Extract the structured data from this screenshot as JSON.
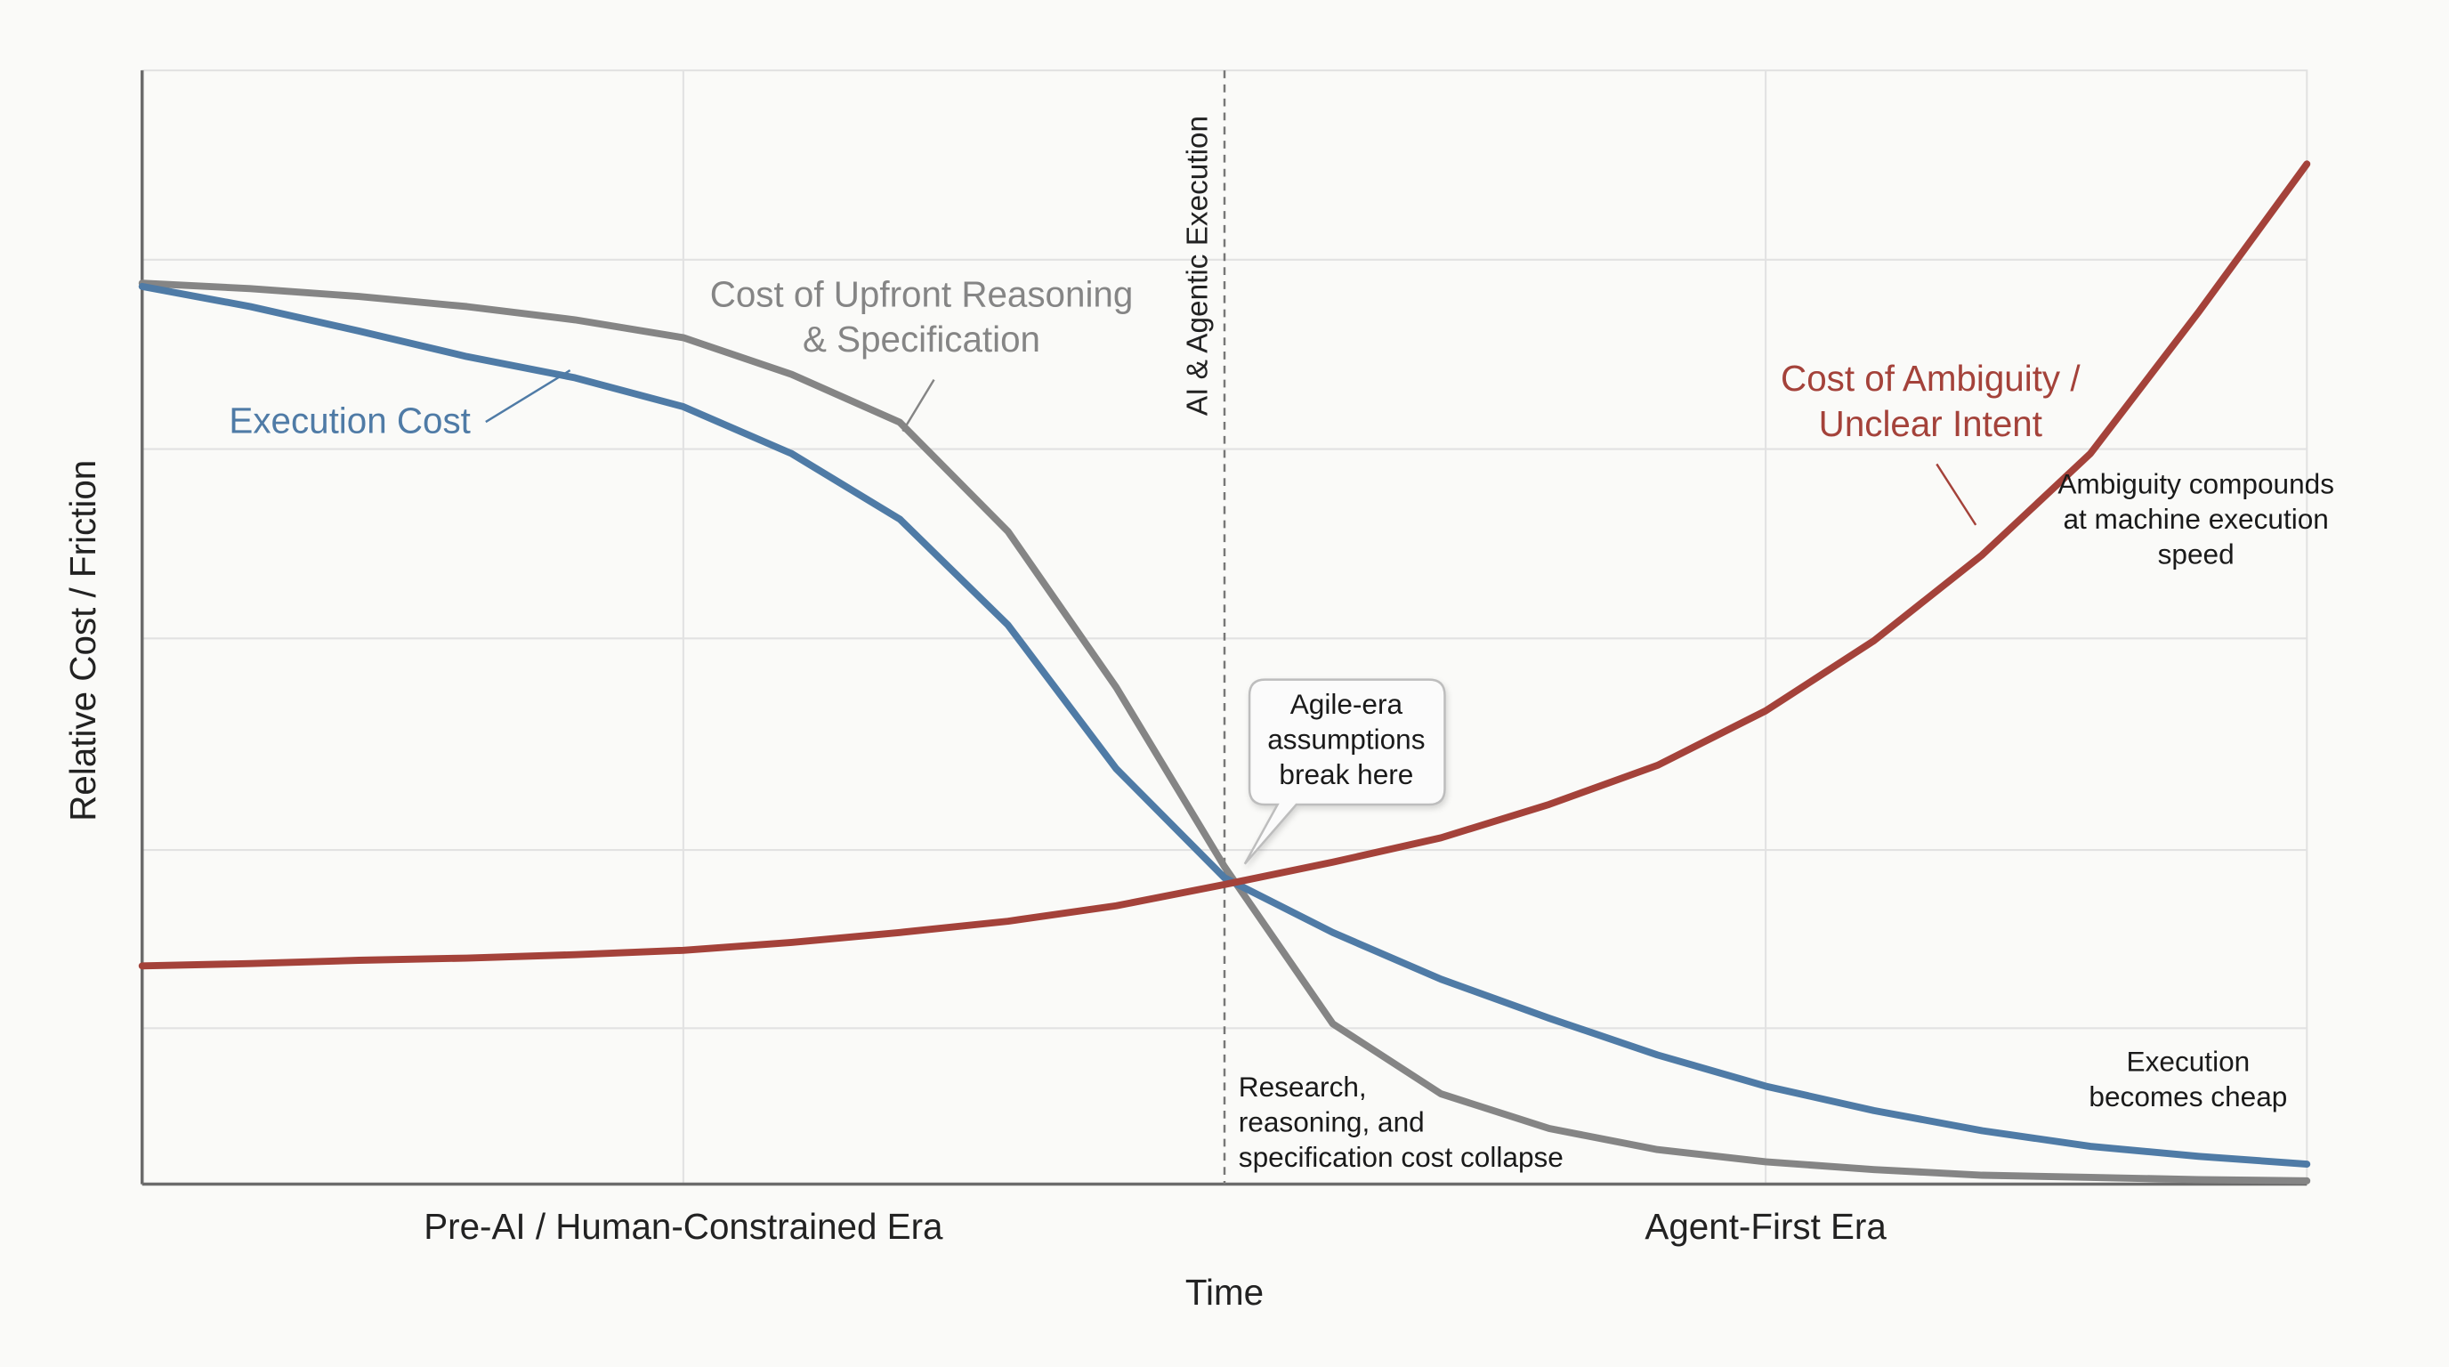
{
  "chart_data": {
    "type": "line",
    "x_label": "Time",
    "y_label": "Relative Cost / Friction",
    "x": [
      0,
      5,
      10,
      15,
      20,
      25,
      30,
      35,
      40,
      45,
      50,
      55,
      60,
      65,
      70,
      75,
      80,
      85,
      90,
      95,
      100
    ],
    "xlim": [
      0,
      100
    ],
    "ylim": [
      0,
      100
    ],
    "xticks": [
      {
        "value": 25,
        "label": "Pre-AI / Human-Constrained Era"
      },
      {
        "value": 75,
        "label": "Agent-First Era"
      }
    ],
    "yticks": [
      14,
      30,
      49,
      66,
      83
    ],
    "grid": true,
    "marker": {
      "x": 50,
      "label": "AI & Agentic Execution"
    },
    "series": [
      {
        "label": [
          "Execution Cost"
        ],
        "color": "#4f7ba6",
        "values": [
          80.6,
          78.8,
          76.6,
          74.3,
          72.4,
          69.8,
          65.6,
          59.7,
          50.2,
          37.3,
          27.5,
          22.6,
          18.4,
          14.9,
          11.6,
          8.8,
          6.6,
          4.8,
          3.4,
          2.5,
          1.8
        ]
      },
      {
        "label": [
          "Cost of Upfront Reasoning",
          "& Specification"
        ],
        "color": "#858585",
        "values": [
          80.9,
          80.4,
          79.7,
          78.8,
          77.6,
          76.0,
          72.7,
          68.4,
          58.6,
          44.6,
          28.5,
          14.4,
          8.1,
          5.0,
          3.1,
          2.0,
          1.3,
          0.8,
          0.6,
          0.4,
          0.3
        ]
      },
      {
        "label": [
          "Cost of Ambiguity /",
          "Unclear Intent"
        ],
        "color": "#a4423a",
        "values": [
          19.6,
          19.8,
          20.1,
          20.3,
          20.6,
          21.0,
          21.7,
          22.6,
          23.6,
          25.0,
          26.9,
          28.9,
          31.1,
          34.1,
          37.6,
          42.5,
          48.8,
          56.5,
          65.6,
          78.3,
          91.6
        ]
      }
    ],
    "annotations": [
      {
        "lines": [
          "Agile-era",
          "assumptions",
          "break here"
        ]
      },
      {
        "lines": [
          "Ambiguity compounds",
          "at machine execution",
          "speed"
        ]
      },
      {
        "lines": [
          "Execution",
          "becomes cheap"
        ]
      },
      {
        "lines": [
          "Research,",
          "reasoning, and",
          "specification cost collapse"
        ]
      }
    ]
  }
}
